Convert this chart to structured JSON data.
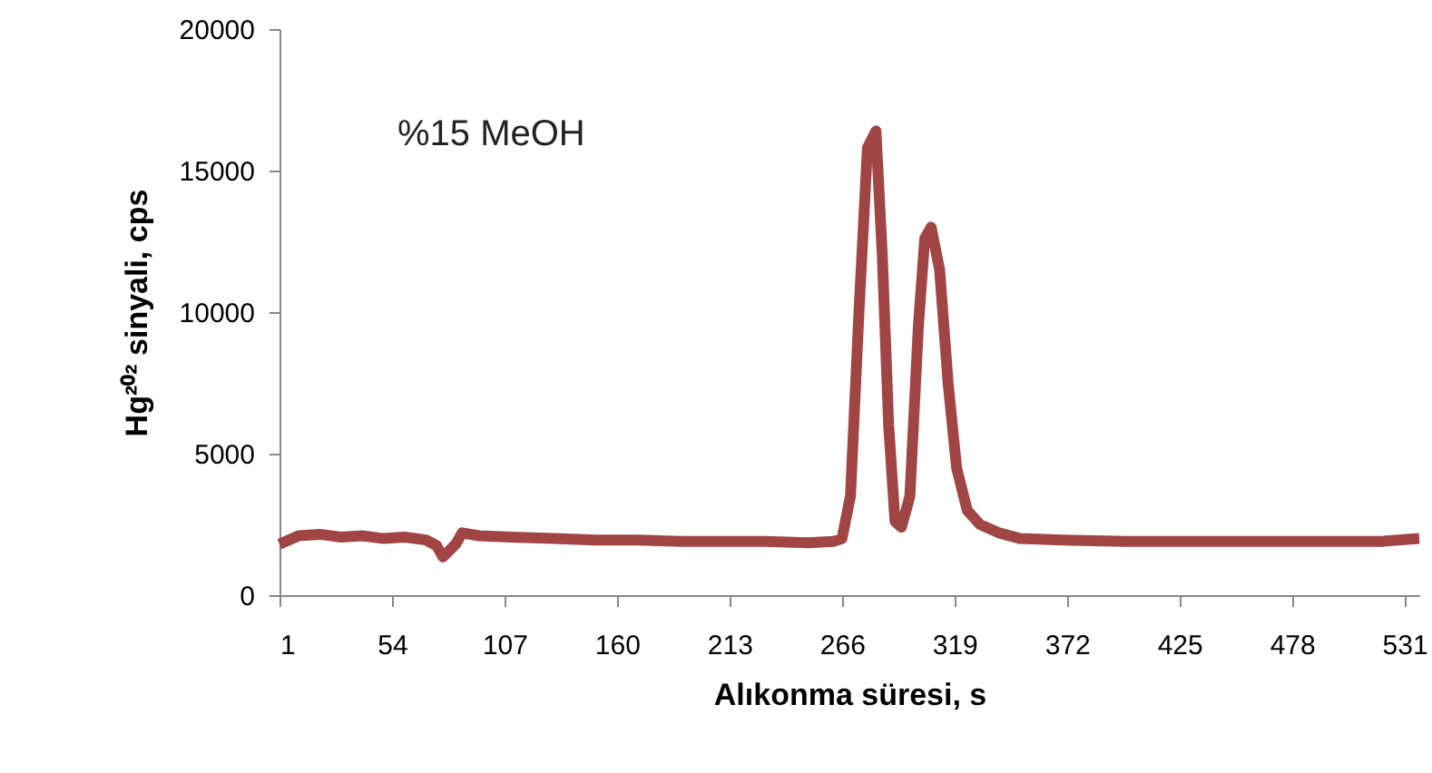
{
  "chart_data": {
    "type": "line",
    "xlabel": "Alıkonma süresi, s",
    "ylabel": "Hg²⁰² sinyali, cps",
    "annotations": [
      "%15 MeOH"
    ],
    "x": [
      1,
      10,
      20,
      30,
      40,
      50,
      60,
      70,
      75,
      78,
      80,
      84,
      87,
      95,
      110,
      130,
      150,
      170,
      190,
      210,
      230,
      250,
      262,
      266,
      270,
      274,
      278,
      282,
      285,
      288,
      291,
      294,
      298,
      302,
      305,
      308,
      312,
      316,
      320,
      325,
      331,
      340,
      350,
      370,
      400,
      430,
      460,
      490,
      520,
      538
    ],
    "series": [
      {
        "color": "#9b3a3a",
        "values": [
          1800,
          2100,
          2150,
          2050,
          2100,
          2000,
          2050,
          1950,
          1750,
          1350,
          1500,
          1800,
          2200,
          2100,
          2050,
          2000,
          1950,
          1950,
          1900,
          1900,
          1900,
          1850,
          1900,
          2000,
          3500,
          10000,
          15800,
          16400,
          12000,
          6000,
          2600,
          2400,
          3500,
          9500,
          12600,
          13000,
          11500,
          7500,
          4500,
          3000,
          2500,
          2200,
          2000,
          1950,
          1900,
          1900,
          1900,
          1900,
          1900,
          2000
        ]
      }
    ],
    "xlim": [
      1,
      538
    ],
    "xticks": [
      1,
      54,
      107,
      160,
      213,
      266,
      319,
      372,
      425,
      478,
      531
    ],
    "ylim": [
      0,
      20000
    ],
    "yticks": [
      0,
      5000,
      10000,
      15000,
      20000
    ],
    "grid": false,
    "marker": "none",
    "line_style": "solid"
  }
}
